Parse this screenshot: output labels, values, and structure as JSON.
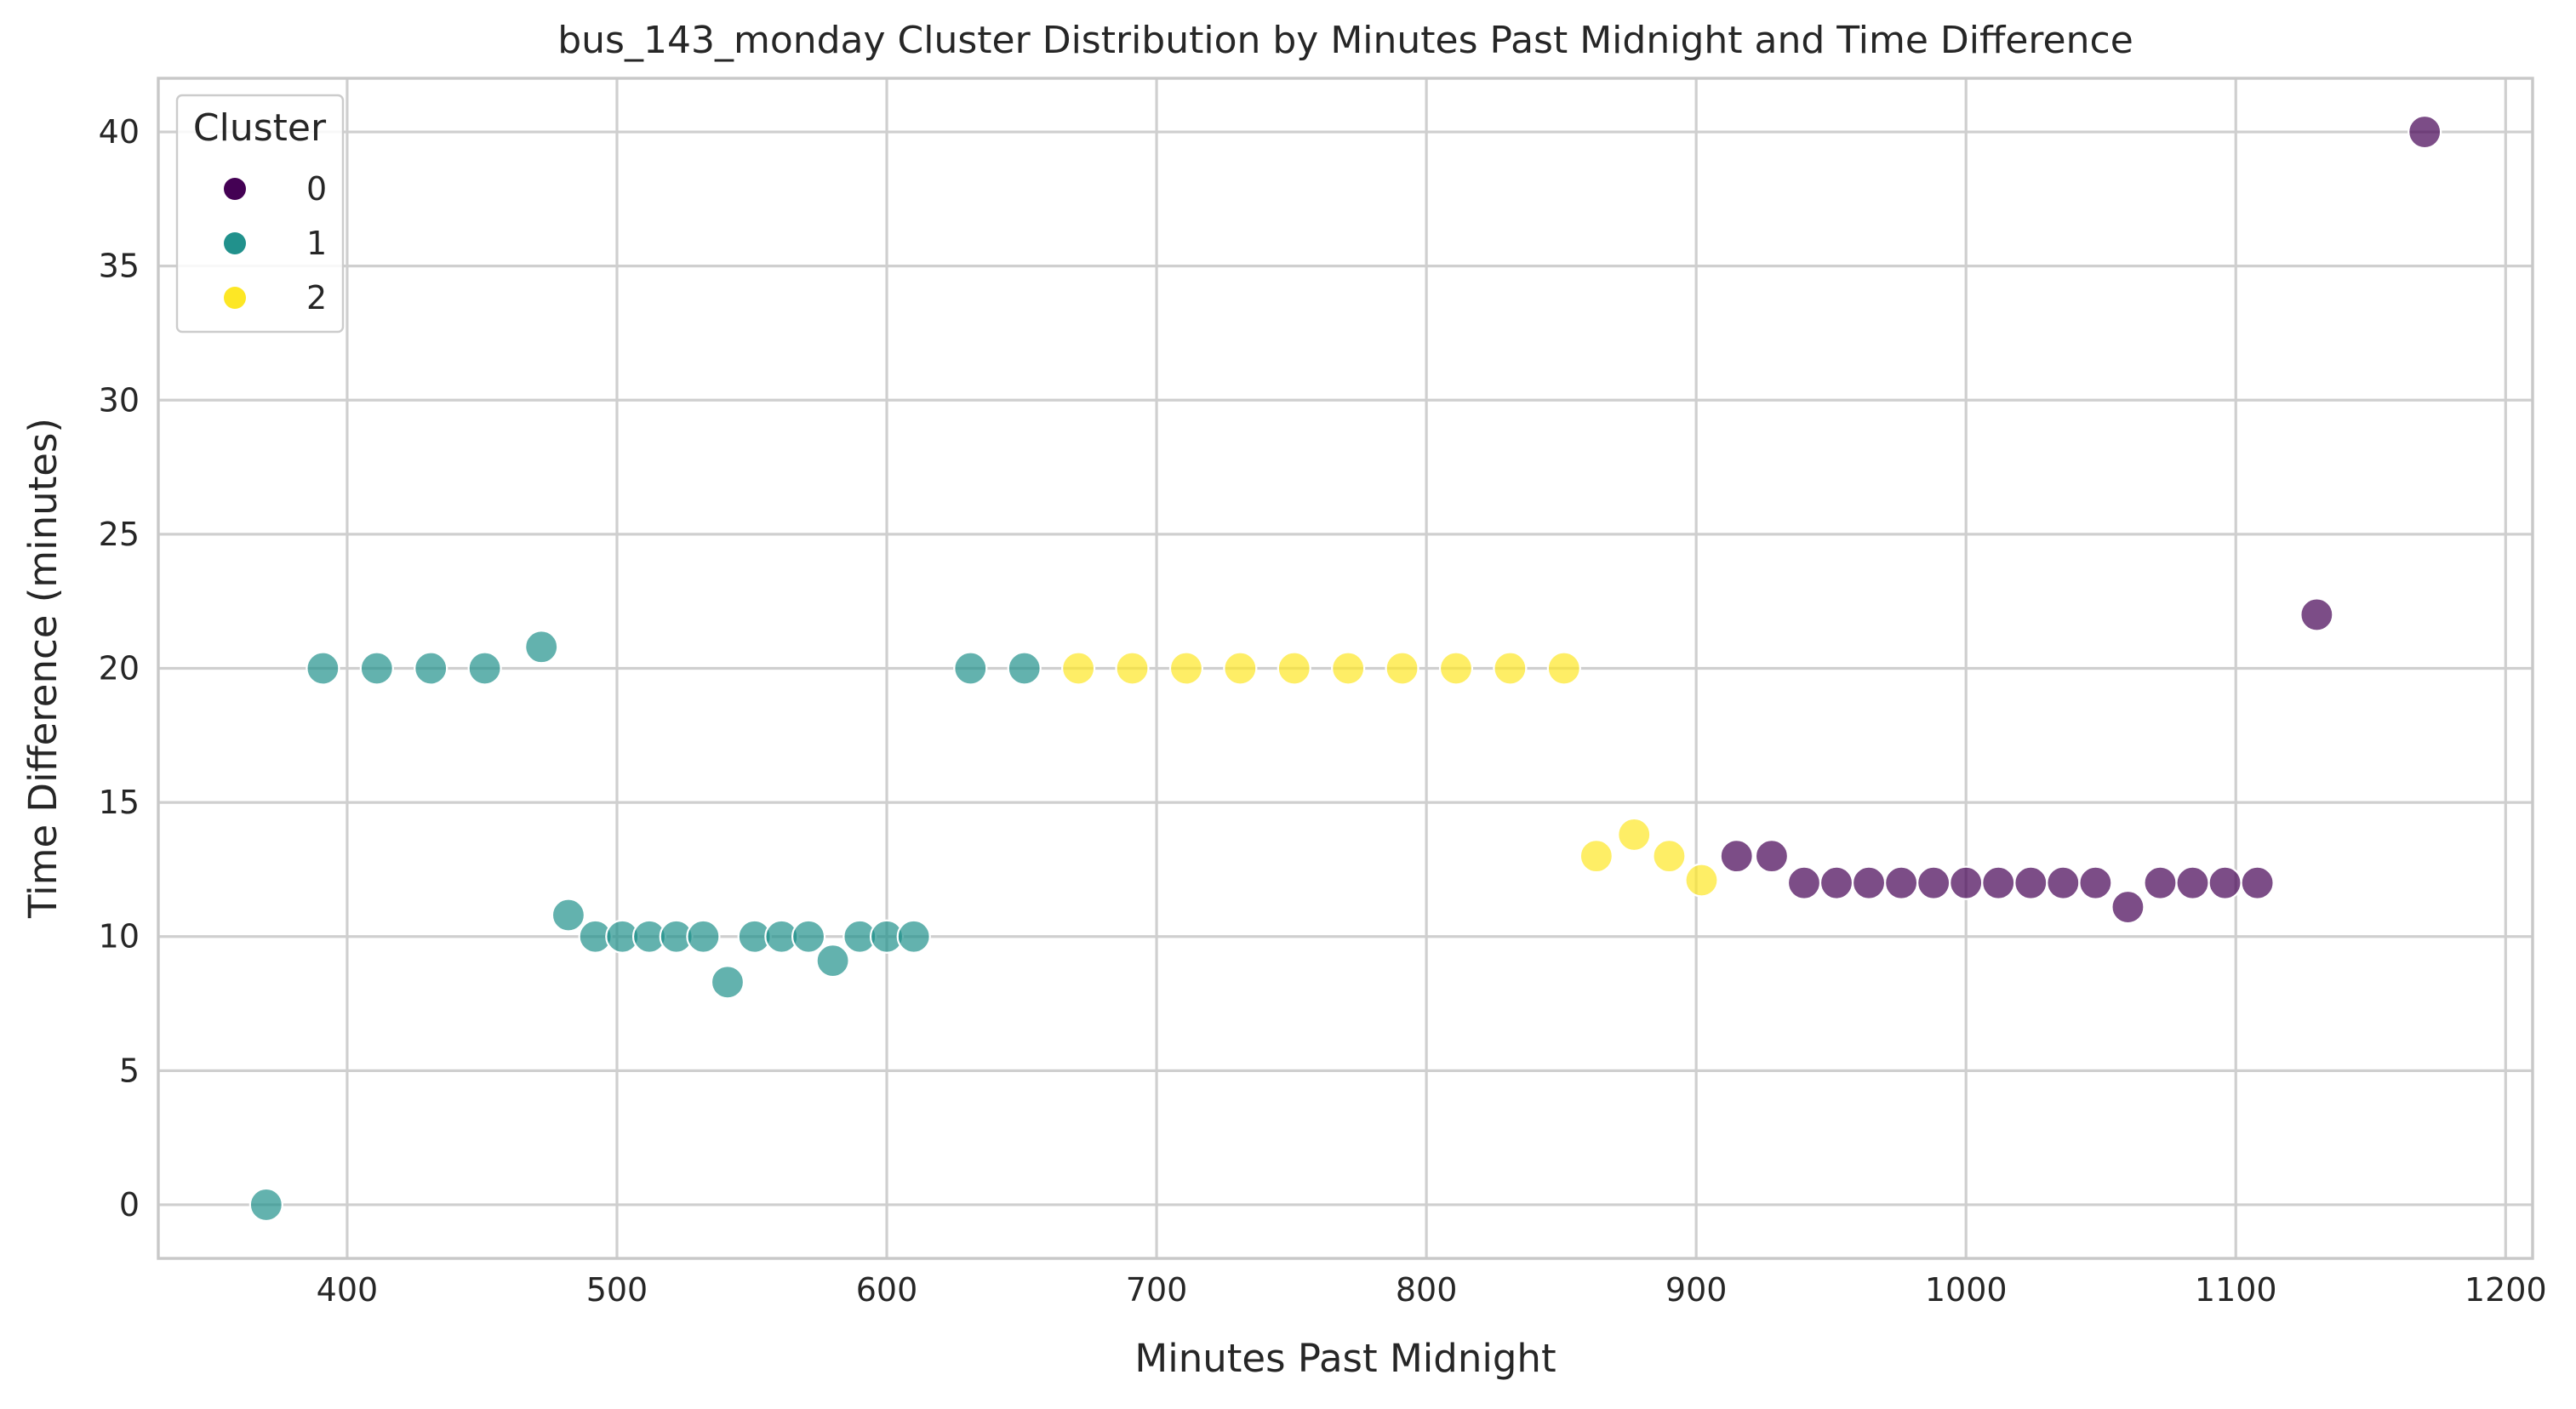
{
  "chart_data": {
    "type": "scatter",
    "title": "bus_143_monday Cluster Distribution by Minutes Past Midnight and Time Difference",
    "xlabel": "Minutes Past Midnight",
    "ylabel": "Time Difference (minutes)",
    "xlim": [
      330,
      1210
    ],
    "ylim": [
      -2,
      42
    ],
    "xticks": [
      400,
      500,
      600,
      700,
      800,
      900,
      1000,
      1100,
      1200
    ],
    "yticks": [
      0,
      5,
      10,
      15,
      20,
      25,
      30,
      35,
      40
    ],
    "grid": true,
    "legend": {
      "title": "Cluster",
      "placement": "top-left"
    },
    "series": [
      {
        "name": "0",
        "color": "#440154",
        "x": [
          915,
          928,
          940,
          952,
          964,
          976,
          988,
          1000,
          1012,
          1024,
          1036,
          1048,
          1060,
          1072,
          1084,
          1096,
          1108,
          1130,
          1170
        ],
        "y": [
          13,
          13,
          12,
          12,
          12,
          12,
          12,
          12,
          12,
          12,
          12,
          12,
          11.1,
          12,
          12,
          12,
          12,
          22,
          40
        ]
      },
      {
        "name": "1",
        "color": "#21918c",
        "x": [
          370,
          391,
          411,
          431,
          451,
          472,
          482,
          492,
          502,
          512,
          522,
          532,
          541,
          551,
          561,
          571,
          580,
          590,
          600,
          610,
          631,
          651
        ],
        "y": [
          0,
          20,
          20,
          20,
          20,
          20.8,
          10.8,
          10,
          10,
          10,
          10,
          10,
          8.3,
          10,
          10,
          10,
          9.1,
          10,
          10,
          10,
          20,
          20
        ]
      },
      {
        "name": "2",
        "color": "#fde725",
        "x": [
          671,
          691,
          711,
          731,
          751,
          771,
          791,
          811,
          831,
          851,
          863,
          877,
          890,
          902
        ],
        "y": [
          20,
          20,
          20,
          20,
          20,
          20,
          20,
          20,
          20,
          20,
          13,
          13.8,
          13,
          12.1
        ]
      }
    ]
  }
}
